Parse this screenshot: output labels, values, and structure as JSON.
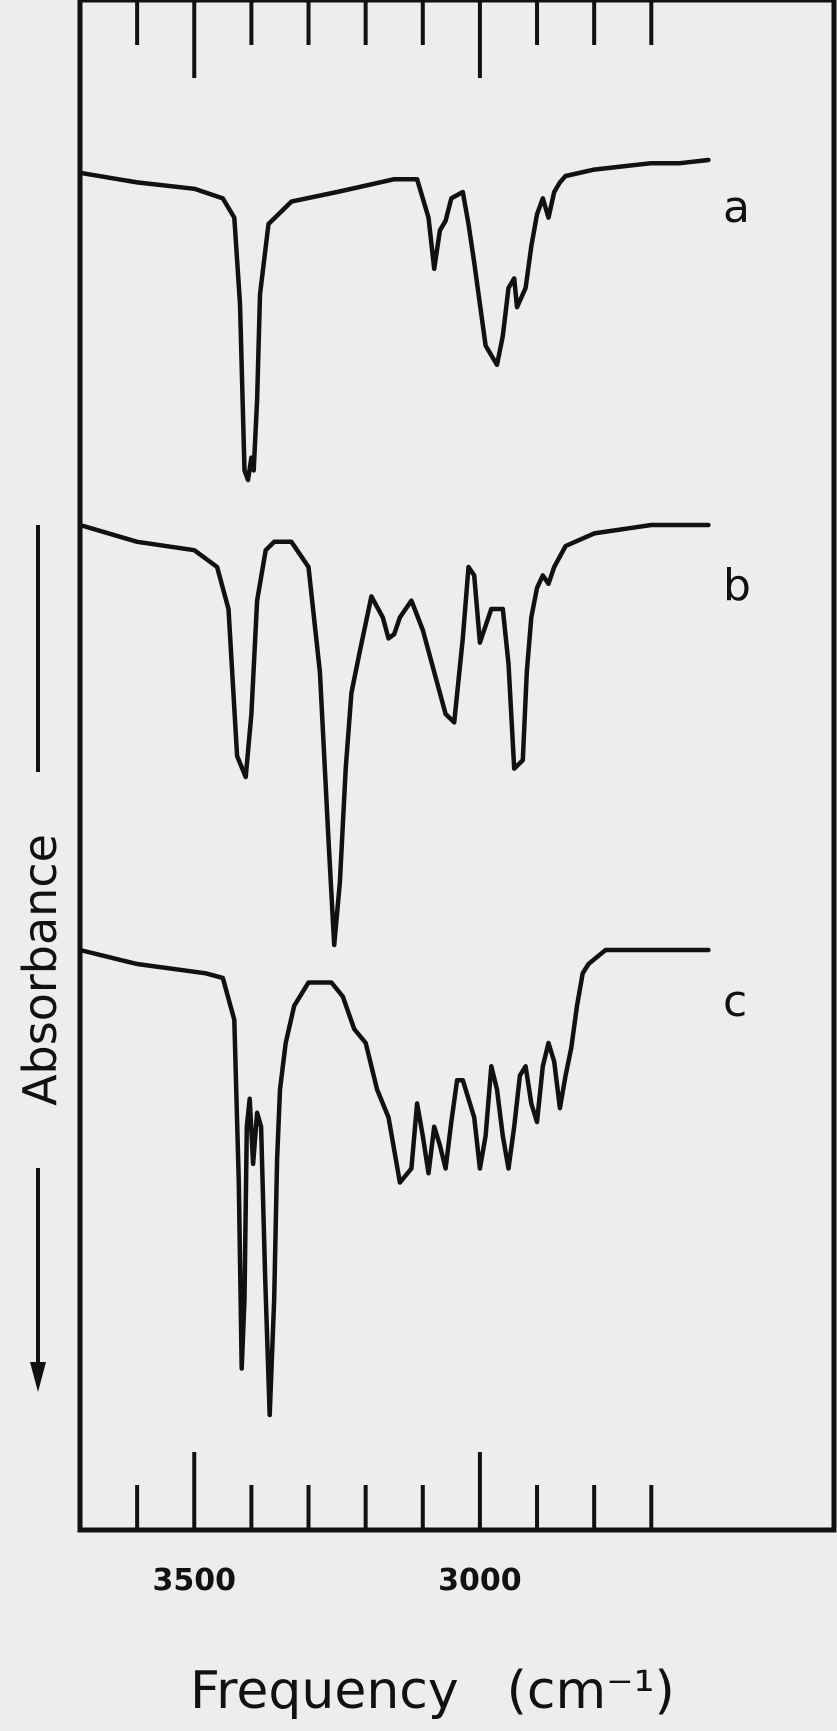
{
  "chart_data": {
    "type": "line",
    "title": "",
    "xlabel": "Frequency",
    "xunit": "(cm⁻¹)",
    "ylabel": "Absorbance",
    "xlim": [
      3700,
      2600
    ],
    "x_reversed": true,
    "x_major_ticks": [
      3500,
      3000
    ],
    "x_minor_ticks": [
      3600,
      3400,
      3300,
      3200,
      3100,
      2900,
      2800,
      2700
    ],
    "x_tick_labels": [
      "3500",
      "3000"
    ],
    "y_scale": "relative absorbance, offset traces, absorbance increasing downward",
    "grid": false,
    "legend": "none",
    "series": [
      {
        "name": "a",
        "x": [
          3700,
          3600,
          3500,
          3450,
          3430,
          3420,
          3412,
          3406,
          3400,
          3396,
          3390,
          3385,
          3370,
          3330,
          3250,
          3150,
          3110,
          3090,
          3080,
          3070,
          3060,
          3050,
          3030,
          3020,
          3010,
          2990,
          2970,
          2960,
          2950,
          2940,
          2935,
          2920,
          2910,
          2900,
          2890,
          2880,
          2870,
          2860,
          2850,
          2800,
          2750,
          2700,
          2650,
          2600
        ],
        "y": [
          0.04,
          0.07,
          0.09,
          0.12,
          0.18,
          0.45,
          0.97,
          1.0,
          0.93,
          0.97,
          0.75,
          0.42,
          0.2,
          0.13,
          0.1,
          0.06,
          0.06,
          0.18,
          0.34,
          0.22,
          0.19,
          0.12,
          0.1,
          0.2,
          0.32,
          0.58,
          0.64,
          0.55,
          0.4,
          0.37,
          0.46,
          0.4,
          0.27,
          0.17,
          0.12,
          0.18,
          0.1,
          0.07,
          0.05,
          0.03,
          0.02,
          0.01,
          0.01,
          0.0
        ]
      },
      {
        "name": "b",
        "x": [
          3700,
          3600,
          3500,
          3460,
          3440,
          3425,
          3410,
          3400,
          3390,
          3375,
          3360,
          3330,
          3300,
          3280,
          3265,
          3255,
          3245,
          3235,
          3225,
          3210,
          3190,
          3170,
          3160,
          3150,
          3140,
          3120,
          3100,
          3080,
          3060,
          3045,
          3030,
          3020,
          3010,
          3000,
          2980,
          2960,
          2950,
          2940,
          2925,
          2918,
          2910,
          2900,
          2890,
          2880,
          2870,
          2850,
          2800,
          2700,
          2600
        ],
        "y": [
          0.0,
          0.04,
          0.06,
          0.1,
          0.2,
          0.55,
          0.6,
          0.45,
          0.18,
          0.06,
          0.04,
          0.04,
          0.1,
          0.35,
          0.75,
          1.0,
          0.85,
          0.58,
          0.4,
          0.3,
          0.17,
          0.22,
          0.27,
          0.26,
          0.22,
          0.18,
          0.25,
          0.35,
          0.45,
          0.47,
          0.27,
          0.1,
          0.12,
          0.28,
          0.2,
          0.2,
          0.33,
          0.58,
          0.56,
          0.35,
          0.22,
          0.15,
          0.12,
          0.14,
          0.1,
          0.05,
          0.02,
          0.0,
          0.0
        ]
      },
      {
        "name": "c",
        "x": [
          3700,
          3600,
          3480,
          3450,
          3430,
          3422,
          3417,
          3412,
          3408,
          3403,
          3397,
          3390,
          3383,
          3376,
          3368,
          3360,
          3355,
          3350,
          3340,
          3325,
          3300,
          3260,
          3240,
          3220,
          3200,
          3180,
          3160,
          3140,
          3120,
          3110,
          3100,
          3090,
          3080,
          3070,
          3060,
          3050,
          3040,
          3030,
          3020,
          3010,
          3000,
          2990,
          2980,
          2970,
          2960,
          2950,
          2940,
          2930,
          2920,
          2910,
          2900,
          2890,
          2880,
          2870,
          2860,
          2850,
          2840,
          2830,
          2820,
          2810,
          2800,
          2780,
          2750,
          2700,
          2650,
          2600
        ],
        "y": [
          0.0,
          0.03,
          0.05,
          0.06,
          0.15,
          0.5,
          0.9,
          0.75,
          0.38,
          0.32,
          0.46,
          0.35,
          0.38,
          0.7,
          1.0,
          0.75,
          0.45,
          0.3,
          0.2,
          0.12,
          0.07,
          0.07,
          0.1,
          0.17,
          0.2,
          0.3,
          0.36,
          0.5,
          0.47,
          0.33,
          0.4,
          0.48,
          0.38,
          0.42,
          0.47,
          0.37,
          0.28,
          0.28,
          0.32,
          0.36,
          0.47,
          0.4,
          0.25,
          0.3,
          0.4,
          0.47,
          0.38,
          0.27,
          0.25,
          0.33,
          0.37,
          0.25,
          0.2,
          0.24,
          0.34,
          0.27,
          0.21,
          0.12,
          0.05,
          0.03,
          0.02,
          0.0,
          0.0,
          0.0,
          0.0,
          0.0
        ]
      }
    ]
  }
}
